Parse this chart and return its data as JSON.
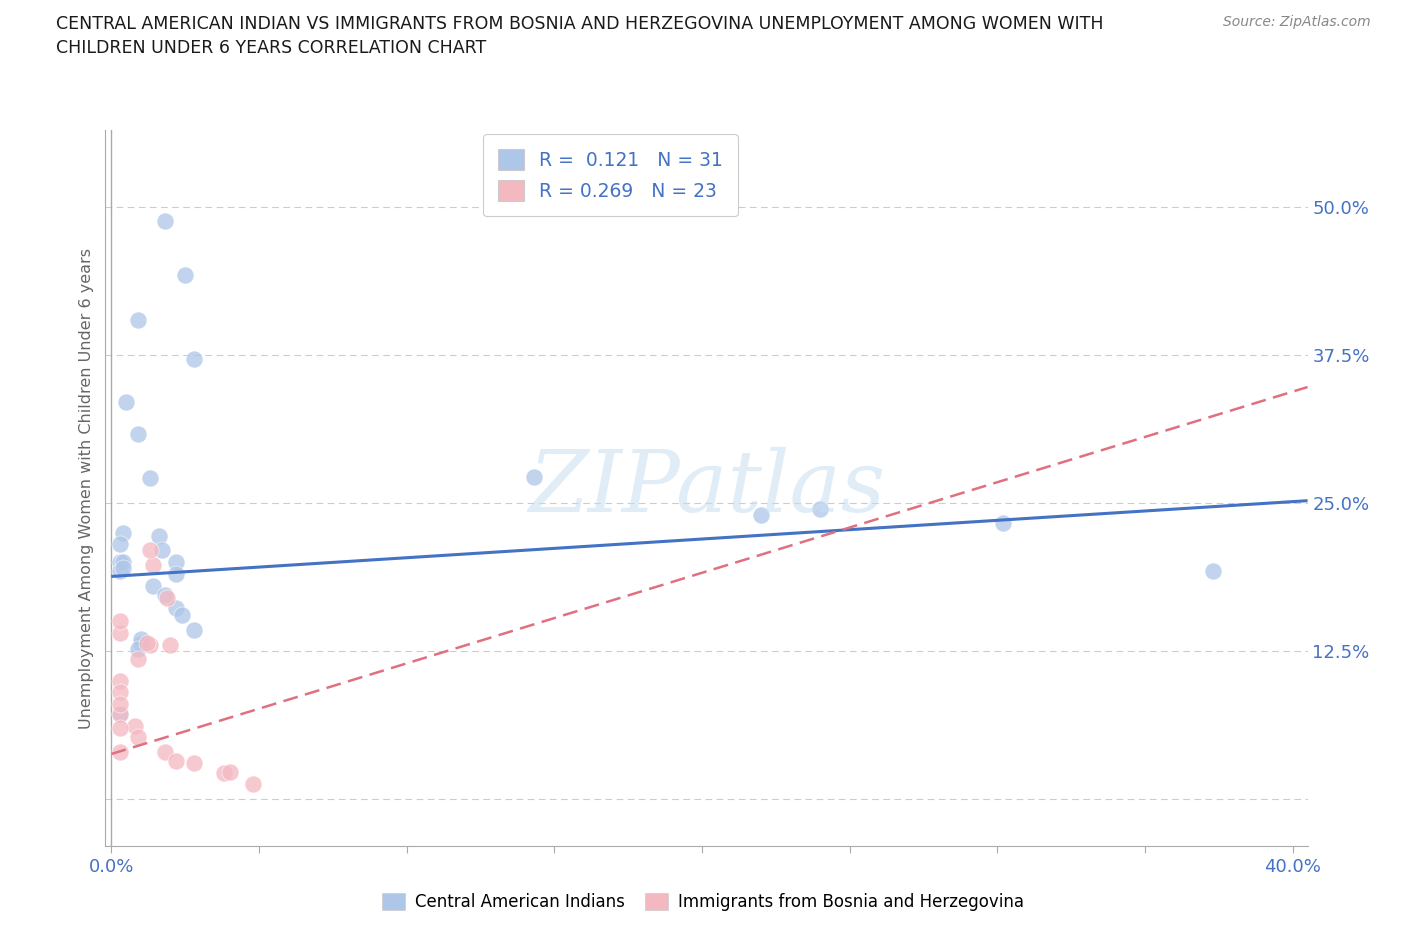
{
  "title_line1": "CENTRAL AMERICAN INDIAN VS IMMIGRANTS FROM BOSNIA AND HERZEGOVINA UNEMPLOYMENT AMONG WOMEN WITH",
  "title_line2": "CHILDREN UNDER 6 YEARS CORRELATION CHART",
  "source": "Source: ZipAtlas.com",
  "ylabel": "Unemployment Among Women with Children Under 6 years",
  "xlim": [
    -0.002,
    0.405
  ],
  "ylim": [
    -0.04,
    0.565
  ],
  "yticks": [
    0.0,
    0.125,
    0.25,
    0.375,
    0.5
  ],
  "ytick_labels": [
    "",
    "12.5%",
    "25.0%",
    "37.5%",
    "50.0%"
  ],
  "xticks": [
    0.0,
    0.05,
    0.1,
    0.15,
    0.2,
    0.25,
    0.3,
    0.35,
    0.4
  ],
  "xtick_labels": [
    "0.0%",
    "",
    "",
    "",
    "",
    "",
    "",
    "",
    "40.0%"
  ],
  "blue_color": "#aec6e8",
  "pink_color": "#f4b8c1",
  "blue_line_color": "#4472c4",
  "pink_line_color": "#e07080",
  "label_color": "#4472c4",
  "watermark_color": "#c8dff0",
  "blue_scatter_x": [
    0.018,
    0.025,
    0.009,
    0.028,
    0.005,
    0.009,
    0.013,
    0.016,
    0.017,
    0.022,
    0.022,
    0.014,
    0.018,
    0.022,
    0.024,
    0.028,
    0.01,
    0.004,
    0.003,
    0.003,
    0.003,
    0.143,
    0.22,
    0.004,
    0.004,
    0.01,
    0.009,
    0.003,
    0.302,
    0.373,
    0.24
  ],
  "blue_scatter_y": [
    0.488,
    0.443,
    0.405,
    0.372,
    0.335,
    0.308,
    0.271,
    0.222,
    0.21,
    0.2,
    0.19,
    0.18,
    0.172,
    0.161,
    0.155,
    0.143,
    0.131,
    0.225,
    0.215,
    0.2,
    0.193,
    0.272,
    0.24,
    0.2,
    0.195,
    0.135,
    0.127,
    0.072,
    0.233,
    0.193,
    0.245
  ],
  "pink_scatter_x": [
    0.003,
    0.008,
    0.009,
    0.018,
    0.022,
    0.028,
    0.038,
    0.048,
    0.04,
    0.003,
    0.009,
    0.013,
    0.003,
    0.003,
    0.003,
    0.003,
    0.014,
    0.019,
    0.02,
    0.012,
    0.003,
    0.003,
    0.013
  ],
  "pink_scatter_y": [
    0.072,
    0.062,
    0.052,
    0.04,
    0.032,
    0.03,
    0.022,
    0.013,
    0.023,
    0.1,
    0.118,
    0.13,
    0.14,
    0.15,
    0.09,
    0.08,
    0.198,
    0.17,
    0.13,
    0.132,
    0.06,
    0.04,
    0.21
  ],
  "blue_trend_x": [
    0.0,
    0.405
  ],
  "blue_trend_y": [
    0.188,
    0.252
  ],
  "pink_trend_x": [
    0.0,
    0.405
  ],
  "pink_trend_y": [
    0.038,
    0.348
  ]
}
